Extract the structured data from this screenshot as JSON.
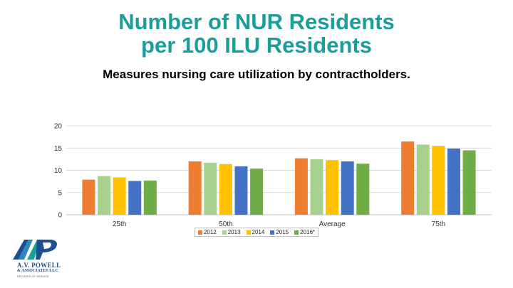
{
  "title_line1": "Number of NUR Residents",
  "title_line2": "per 100 ILU Residents",
  "subtitle": "Measures nursing care utilization by contractholders.",
  "logo": {
    "name": "A.V. POWELL",
    "sub": "& ASSOCIATES LLC",
    "tag": "DECADES OF SERVICE"
  },
  "chart_data": {
    "type": "bar",
    "categories": [
      "25th",
      "50th",
      "Average",
      "75th"
    ],
    "series": [
      {
        "name": "2012",
        "color": "#ed7d31",
        "values": [
          7.9,
          12.0,
          12.7,
          16.5
        ]
      },
      {
        "name": "2013",
        "color": "#a9d18e",
        "values": [
          8.7,
          11.7,
          12.5,
          15.8
        ]
      },
      {
        "name": "2014",
        "color": "#ffc000",
        "values": [
          8.4,
          11.4,
          12.3,
          15.5
        ]
      },
      {
        "name": "2015",
        "color": "#4472c4",
        "values": [
          7.6,
          10.9,
          12.0,
          14.9
        ]
      },
      {
        "name": "2016*",
        "color": "#70ad47",
        "values": [
          7.7,
          10.4,
          11.5,
          14.5
        ]
      }
    ],
    "ylim": [
      0,
      20
    ],
    "yticks": [
      0,
      5,
      10,
      15,
      20
    ],
    "grid": true,
    "legend": "bottom",
    "xlabel": "",
    "ylabel": ""
  }
}
